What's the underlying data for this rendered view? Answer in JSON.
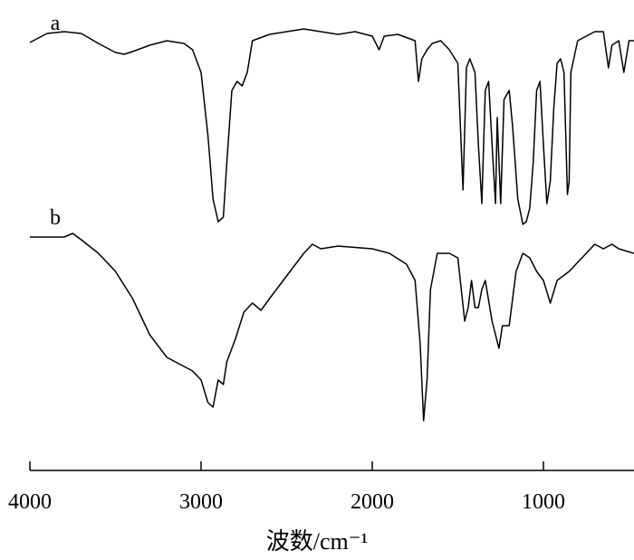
{
  "chart_data": {
    "type": "line",
    "xlabel": "波数/cm⁻¹",
    "xlim": [
      4000,
      471
    ],
    "xticks": [
      4000,
      3000,
      2000,
      1000
    ],
    "ylim": [
      0,
      500
    ],
    "series": [
      {
        "name": "a",
        "color": "#000000",
        "x": [
          4000,
          3900,
          3800,
          3700,
          3600,
          3500,
          3450,
          3400,
          3300,
          3200,
          3100,
          3050,
          3000,
          2960,
          2930,
          2900,
          2870,
          2850,
          2820,
          2790,
          2760,
          2730,
          2700,
          2600,
          2400,
          2300,
          2200,
          2100,
          2000,
          1960,
          1930,
          1850,
          1750,
          1730,
          1710,
          1680,
          1650,
          1600,
          1550,
          1500,
          1470,
          1450,
          1430,
          1400,
          1380,
          1360,
          1340,
          1320,
          1300,
          1280,
          1270,
          1250,
          1230,
          1200,
          1180,
          1150,
          1120,
          1100,
          1080,
          1060,
          1040,
          1020,
          1000,
          980,
          960,
          940,
          920,
          900,
          880,
          860,
          850,
          840,
          800,
          700,
          650,
          620,
          600,
          560,
          530,
          500,
          471
        ],
        "values": [
          473,
          483,
          485,
          483,
          472,
          462,
          460,
          463,
          470,
          475,
          472,
          465,
          440,
          370,
          300,
          275,
          280,
          340,
          420,
          430,
          425,
          440,
          475,
          482,
          488,
          485,
          482,
          485,
          480,
          465,
          480,
          482,
          475,
          430,
          455,
          465,
          472,
          475,
          465,
          450,
          310,
          445,
          455,
          440,
          360,
          295,
          420,
          430,
          360,
          295,
          390,
          295,
          410,
          420,
          380,
          300,
          272,
          275,
          290,
          340,
          420,
          430,
          360,
          295,
          320,
          400,
          450,
          455,
          440,
          305,
          320,
          440,
          475,
          485,
          485,
          445,
          470,
          475,
          440,
          475,
          475
        ]
      },
      {
        "name": "b",
        "color": "#000000",
        "x": [
          4000,
          3800,
          3750,
          3700,
          3600,
          3500,
          3400,
          3300,
          3200,
          3100,
          3050,
          3000,
          2960,
          2930,
          2900,
          2870,
          2850,
          2800,
          2750,
          2700,
          2650,
          2600,
          2500,
          2400,
          2350,
          2300,
          2200,
          2000,
          1900,
          1800,
          1750,
          1720,
          1700,
          1680,
          1660,
          1620,
          1550,
          1500,
          1460,
          1440,
          1420,
          1400,
          1380,
          1360,
          1340,
          1300,
          1260,
          1240,
          1200,
          1160,
          1120,
          1080,
          1040,
          1000,
          960,
          920,
          850,
          800,
          700,
          650,
          600,
          560,
          471
        ],
        "values": [
          258,
          258,
          262,
          255,
          240,
          220,
          190,
          150,
          125,
          115,
          110,
          100,
          75,
          70,
          100,
          95,
          120,
          145,
          175,
          185,
          177,
          190,
          215,
          240,
          250,
          245,
          248,
          245,
          240,
          228,
          210,
          140,
          55,
          100,
          200,
          240,
          240,
          235,
          165,
          180,
          210,
          180,
          180,
          200,
          210,
          165,
          135,
          160,
          160,
          220,
          240,
          235,
          220,
          210,
          185,
          210,
          220,
          230,
          250,
          245,
          250,
          245,
          240
        ]
      }
    ]
  }
}
